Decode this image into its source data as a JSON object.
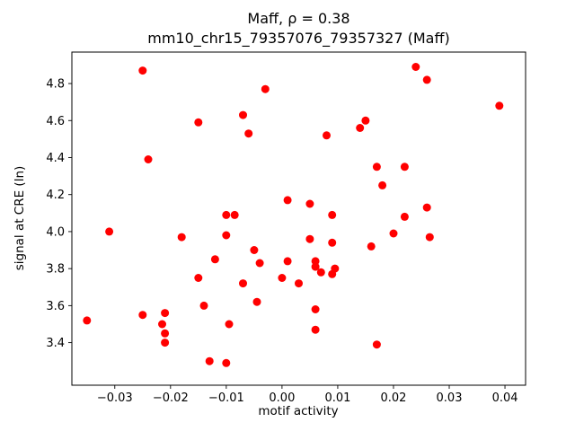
{
  "chart_data": {
    "type": "scatter",
    "title": "Maff, ρ = 0.38",
    "subtitle": "mm10_chr15_79357076_79357327 (Maff)",
    "xlabel": "motif activity",
    "ylabel": "signal at CRE (ln)",
    "xlim": [
      -0.0377,
      0.0437
    ],
    "ylim": [
      3.17,
      4.97
    ],
    "xtick_values": [
      -0.03,
      -0.02,
      -0.01,
      0.0,
      0.01,
      0.02,
      0.03,
      0.04
    ],
    "xtick_labels": [
      "−0.03",
      "−0.02",
      "−0.01",
      "0.00",
      "0.01",
      "0.02",
      "0.03",
      "0.04"
    ],
    "ytick_values": [
      3.4,
      3.6,
      3.8,
      4.0,
      4.2,
      4.4,
      4.6,
      4.8
    ],
    "ytick_labels": [
      "3.4",
      "3.6",
      "3.8",
      "4.0",
      "4.2",
      "4.4",
      "4.6",
      "4.8"
    ],
    "marker_color": "#ff0000",
    "grid": false,
    "legend": null,
    "points": [
      [
        -0.035,
        3.52
      ],
      [
        -0.031,
        4.0
      ],
      [
        -0.025,
        4.87
      ],
      [
        -0.024,
        4.39
      ],
      [
        -0.025,
        3.55
      ],
      [
        -0.021,
        3.56
      ],
      [
        -0.0215,
        3.5
      ],
      [
        -0.021,
        3.45
      ],
      [
        -0.021,
        3.4
      ],
      [
        -0.018,
        3.97
      ],
      [
        -0.015,
        4.59
      ],
      [
        -0.015,
        3.75
      ],
      [
        -0.014,
        3.6
      ],
      [
        -0.012,
        3.85
      ],
      [
        -0.013,
        3.3
      ],
      [
        -0.01,
        3.29
      ],
      [
        -0.01,
        4.09
      ],
      [
        -0.0085,
        4.09
      ],
      [
        -0.01,
        3.98
      ],
      [
        -0.0095,
        3.5
      ],
      [
        -0.007,
        4.63
      ],
      [
        -0.006,
        4.53
      ],
      [
        -0.007,
        3.72
      ],
      [
        -0.005,
        3.9
      ],
      [
        -0.004,
        3.83
      ],
      [
        -0.0045,
        3.62
      ],
      [
        -0.003,
        4.77
      ],
      [
        0.0,
        3.75
      ],
      [
        0.001,
        4.17
      ],
      [
        0.001,
        3.84
      ],
      [
        0.003,
        3.72
      ],
      [
        0.005,
        4.15
      ],
      [
        0.005,
        3.96
      ],
      [
        0.006,
        3.84
      ],
      [
        0.006,
        3.81
      ],
      [
        0.007,
        3.78
      ],
      [
        0.006,
        3.58
      ],
      [
        0.006,
        3.47
      ],
      [
        0.008,
        4.52
      ],
      [
        0.009,
        4.09
      ],
      [
        0.009,
        3.94
      ],
      [
        0.0095,
        3.8
      ],
      [
        0.009,
        3.77
      ],
      [
        0.014,
        4.56
      ],
      [
        0.015,
        4.6
      ],
      [
        0.016,
        3.92
      ],
      [
        0.017,
        4.35
      ],
      [
        0.018,
        4.25
      ],
      [
        0.017,
        3.39
      ],
      [
        0.02,
        3.99
      ],
      [
        0.022,
        4.35
      ],
      [
        0.022,
        4.08
      ],
      [
        0.024,
        4.89
      ],
      [
        0.026,
        4.82
      ],
      [
        0.026,
        4.13
      ],
      [
        0.0265,
        3.97
      ],
      [
        0.039,
        4.68
      ]
    ]
  }
}
